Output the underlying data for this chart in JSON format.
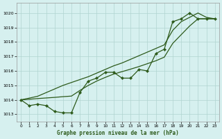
{
  "xlabel": "Graphe pression niveau de la mer (hPa)",
  "bg_color": "#d6f0ef",
  "grid_color": "#b0d4d0",
  "line_color": "#2d5a1b",
  "xlim": [
    -0.5,
    23.5
  ],
  "ylim": [
    1012.5,
    1020.7
  ],
  "yticks": [
    1013,
    1014,
    1015,
    1016,
    1017,
    1018,
    1019,
    1020
  ],
  "xticks": [
    0,
    1,
    2,
    3,
    4,
    5,
    6,
    7,
    8,
    9,
    10,
    11,
    12,
    13,
    14,
    15,
    16,
    17,
    18,
    19,
    20,
    21,
    22,
    23
  ],
  "line_actual": [
    1014.0,
    1013.6,
    1013.7,
    1013.6,
    1013.2,
    1013.1,
    1013.1,
    1014.5,
    1015.3,
    1015.5,
    1015.9,
    1015.9,
    1015.5,
    1015.5,
    1016.1,
    1016.0,
    1017.2,
    1017.5,
    1019.4,
    1019.6,
    1020.0,
    1019.6,
    1019.6,
    1019.6
  ],
  "line_trend_high": [
    1014.0,
    1014.12,
    1014.25,
    1014.5,
    1014.75,
    1015.0,
    1015.2,
    1015.4,
    1015.6,
    1015.85,
    1016.1,
    1016.35,
    1016.55,
    1016.8,
    1017.05,
    1017.3,
    1017.55,
    1017.8,
    1018.8,
    1019.4,
    1019.7,
    1020.0,
    1019.7,
    1019.6
  ],
  "line_trend_low": [
    1014.0,
    1014.04,
    1014.09,
    1014.13,
    1014.17,
    1014.22,
    1014.26,
    1014.65,
    1015.0,
    1015.3,
    1015.55,
    1015.78,
    1015.95,
    1016.12,
    1016.3,
    1016.5,
    1016.7,
    1016.95,
    1017.9,
    1018.5,
    1019.1,
    1019.6,
    1019.6,
    1019.6
  ]
}
